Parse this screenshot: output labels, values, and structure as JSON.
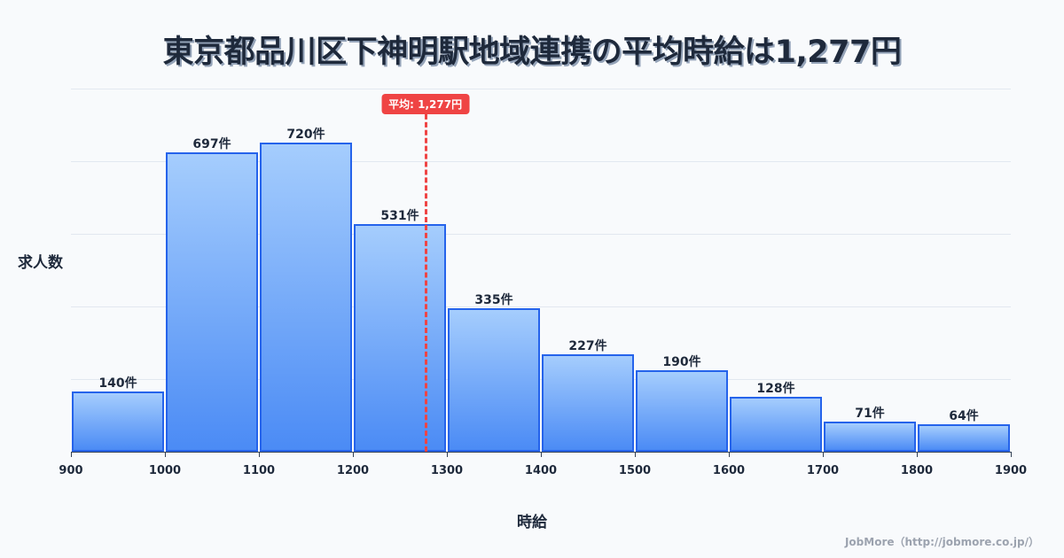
{
  "title": "東京都品川区下神明駅地域連携の平均時給は1,277円",
  "mean_badge": "平均: 1,277円",
  "ylabel": "求人数",
  "xlabel": "時給",
  "credit": "JobMore（http://jobmore.co.jp/）",
  "colors": {
    "bar_border": "#2563eb",
    "bar_top": "#a5cdfd",
    "bar_bottom": "#4b8bf5",
    "mean": "#ef4444",
    "text": "#1e293b"
  },
  "chart_data": {
    "type": "bar",
    "title": "東京都品川区下神明駅地域連携の平均時給は1,277円",
    "xlabel": "時給",
    "ylabel": "求人数",
    "bins": [
      [
        900,
        1000
      ],
      [
        1000,
        1100
      ],
      [
        1100,
        1200
      ],
      [
        1200,
        1300
      ],
      [
        1300,
        1400
      ],
      [
        1400,
        1500
      ],
      [
        1500,
        1600
      ],
      [
        1600,
        1700
      ],
      [
        1700,
        1800
      ],
      [
        1800,
        1900
      ]
    ],
    "categories": [
      "900-1000",
      "1000-1100",
      "1100-1200",
      "1200-1300",
      "1300-1400",
      "1400-1500",
      "1500-1600",
      "1600-1700",
      "1700-1800",
      "1800-1900"
    ],
    "values": [
      140,
      697,
      720,
      531,
      335,
      227,
      190,
      128,
      71,
      64
    ],
    "value_labels": [
      "140件",
      "697件",
      "720件",
      "531件",
      "335件",
      "227件",
      "190件",
      "128件",
      "71件",
      "64件"
    ],
    "x_ticks": [
      "900",
      "1000",
      "1100",
      "1200",
      "1300",
      "1400",
      "1500",
      "1600",
      "1700",
      "1800",
      "1900"
    ],
    "xlim": [
      900,
      1900
    ],
    "ylim": [
      0,
      846
    ],
    "grid": true,
    "mean": 1277,
    "mean_label": "平均: 1,277円"
  }
}
